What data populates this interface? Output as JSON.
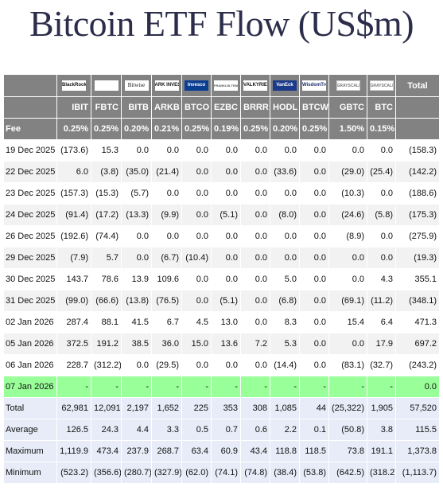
{
  "title": "Bitcoin ETF Flow (US$m)",
  "logos": [
    {
      "icon": "blackrock-logo",
      "text": "BlackRock"
    },
    {
      "icon": "fidelity-logo",
      "text": "Fidelity"
    },
    {
      "icon": "bitwise-logo",
      "text": "Bitwise"
    },
    {
      "icon": "ark-invest-logo",
      "text": "ARK INVEST"
    },
    {
      "icon": "invesco-logo",
      "text": "Invesco"
    },
    {
      "icon": "franklin-templeton-logo",
      "text": "FRANKLIN TEMPLETON"
    },
    {
      "icon": "valkyrie-logo",
      "text": "VALKYRIE"
    },
    {
      "icon": "vaneck-logo",
      "text": "VanEck"
    },
    {
      "icon": "wisdomtree-logo",
      "text": "WisdomTree"
    },
    {
      "icon": "grayscale-logo",
      "text": "GRAYSCALE"
    },
    {
      "icon": "grayscale-mini-logo",
      "text": "GRAYSCALE"
    }
  ],
  "total_header": "Total",
  "tickers": [
    "IBIT",
    "FBTC",
    "BITB",
    "ARKB",
    "BTCO",
    "EZBC",
    "BRRR",
    "HODL",
    "BTCW",
    "GBTC",
    "BTC"
  ],
  "fee_label": "Fee",
  "fees": [
    "0.25%",
    "0.25%",
    "0.20%",
    "0.21%",
    "0.25%",
    "0.19%",
    "0.25%",
    "0.20%",
    "0.25%",
    "1.50%",
    "0.15%"
  ],
  "rows": [
    {
      "date": "19 Dec 2025",
      "values": [
        "(173.6)",
        "15.3",
        "0.0",
        "0.0",
        "0.0",
        "0.0",
        "0.0",
        "0.0",
        "0.0",
        "0.0",
        "0.0"
      ],
      "total": "(158.3)"
    },
    {
      "date": "22 Dec 2025",
      "values": [
        "6.0",
        "(3.8)",
        "(35.0)",
        "(21.4)",
        "0.0",
        "0.0",
        "0.0",
        "(33.6)",
        "0.0",
        "(29.0)",
        "(25.4)"
      ],
      "total": "(142.2)"
    },
    {
      "date": "23 Dec 2025",
      "values": [
        "(157.3)",
        "(15.3)",
        "(5.7)",
        "0.0",
        "0.0",
        "0.0",
        "0.0",
        "0.0",
        "0.0",
        "(10.3)",
        "0.0"
      ],
      "total": "(188.6)"
    },
    {
      "date": "24 Dec 2025",
      "values": [
        "(91.4)",
        "(17.2)",
        "(13.3)",
        "(9.9)",
        "0.0",
        "(5.1)",
        "0.0",
        "(8.0)",
        "0.0",
        "(24.6)",
        "(5.8)"
      ],
      "total": "(175.3)"
    },
    {
      "date": "26 Dec 2025",
      "values": [
        "(192.6)",
        "(74.4)",
        "0.0",
        "0.0",
        "0.0",
        "0.0",
        "0.0",
        "0.0",
        "0.0",
        "(8.9)",
        "0.0"
      ],
      "total": "(275.9)"
    },
    {
      "date": "29 Dec 2025",
      "values": [
        "(7.9)",
        "5.7",
        "0.0",
        "(6.7)",
        "(10.4)",
        "0.0",
        "0.0",
        "0.0",
        "0.0",
        "0.0",
        "0.0"
      ],
      "total": "(19.3)"
    },
    {
      "date": "30 Dec 2025",
      "values": [
        "143.7",
        "78.6",
        "13.9",
        "109.6",
        "0.0",
        "0.0",
        "0.0",
        "5.0",
        "0.0",
        "0.0",
        "4.3"
      ],
      "total": "355.1"
    },
    {
      "date": "31 Dec 2025",
      "values": [
        "(99.0)",
        "(66.6)",
        "(13.8)",
        "(76.5)",
        "0.0",
        "(5.1)",
        "0.0",
        "(6.8)",
        "0.0",
        "(69.1)",
        "(11.2)"
      ],
      "total": "(348.1)"
    },
    {
      "date": "02 Jan 2026",
      "values": [
        "287.4",
        "88.1",
        "41.5",
        "6.7",
        "4.5",
        "13.0",
        "0.0",
        "8.3",
        "0.0",
        "15.4",
        "6.4"
      ],
      "total": "471.3"
    },
    {
      "date": "05 Jan 2026",
      "values": [
        "372.5",
        "191.2",
        "38.5",
        "36.0",
        "15.0",
        "13.6",
        "7.2",
        "5.3",
        "0.0",
        "0.0",
        "17.9"
      ],
      "total": "697.2"
    },
    {
      "date": "06 Jan 2026",
      "values": [
        "228.7",
        "(312.2)",
        "0.0",
        "(29.5)",
        "0.0",
        "0.0",
        "0.0",
        "(14.4)",
        "0.0",
        "(83.1)",
        "(32.7)"
      ],
      "total": "(243.2)"
    },
    {
      "date": "07 Jan 2026",
      "values": [
        "-",
        "-",
        "-",
        "-",
        "-",
        "-",
        "-",
        "-",
        "-",
        "-",
        "-"
      ],
      "total": "0.0",
      "today": true
    }
  ],
  "summary": [
    {
      "label": "Total",
      "values": [
        "62,981",
        "12,091",
        "2,197",
        "1,652",
        "225",
        "353",
        "308",
        "1,085",
        "44",
        "(25,322)",
        "1,905"
      ],
      "total": "57,520"
    },
    {
      "label": "Average",
      "values": [
        "126.5",
        "24.3",
        "4.4",
        "3.3",
        "0.5",
        "0.7",
        "0.6",
        "2.2",
        "0.1",
        "(50.8)",
        "3.8"
      ],
      "total": "115.5"
    },
    {
      "label": "Maximum",
      "values": [
        "1,119.9",
        "473.4",
        "237.9",
        "268.7",
        "63.4",
        "60.9",
        "43.4",
        "118.8",
        "118.5",
        "73.8",
        "191.1"
      ],
      "total": "1,373.8"
    },
    {
      "label": "Minimum",
      "values": [
        "(523.2)",
        "(356.6)",
        "(280.7)",
        "(327.9)",
        "(62.0)",
        "(74.1)",
        "(74.8)",
        "(38.4)",
        "(53.8)",
        "(642.5)",
        "(318.2)"
      ],
      "total": "(1,113.7)"
    }
  ],
  "colors": {
    "header_bg": "#828282",
    "negative": "#e0262b",
    "today_bg": "#99ff99",
    "summary_bg": "#e8ecf8",
    "alt_row_bg": "#f2f2f2",
    "title": "#2b2d4a"
  }
}
